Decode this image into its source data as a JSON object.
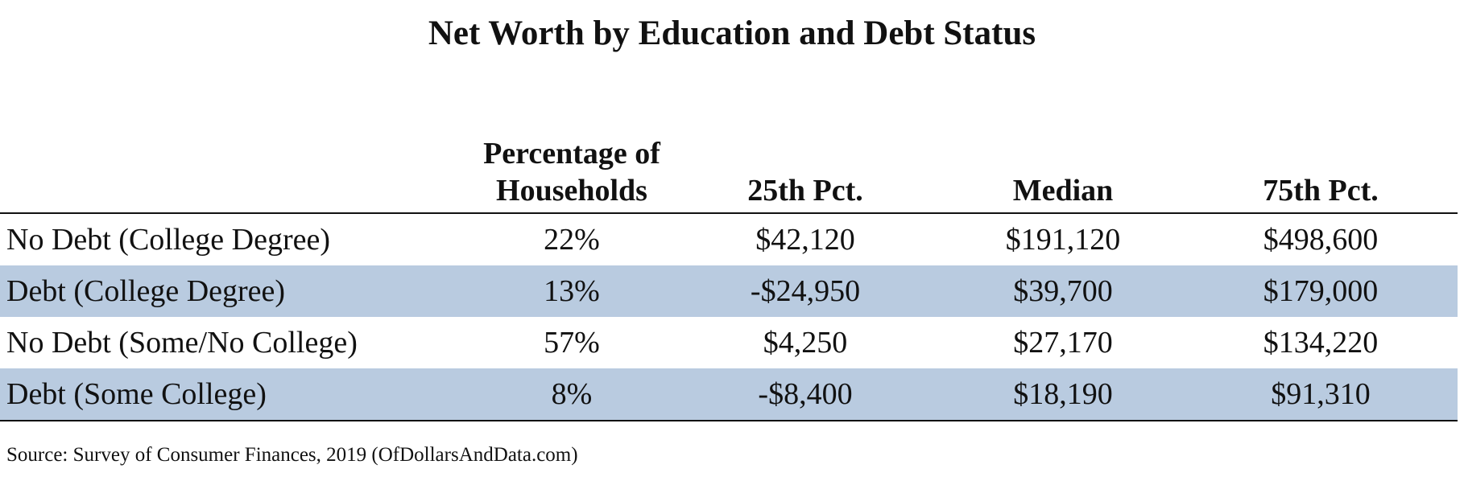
{
  "title": "Net Worth by Education and Debt Status",
  "colors": {
    "shaded_row": "#b9cbe0",
    "text": "#111111",
    "rule": "#111111"
  },
  "table": {
    "headers": {
      "label": "",
      "pct_households": "Percentage of Households",
      "p25": "25th Pct.",
      "median": "Median",
      "p75": "75th Pct."
    },
    "rows": [
      {
        "label": "No Debt (College Degree)",
        "pct_households": "22%",
        "p25": "$42,120",
        "median": "$191,120",
        "p75": "$498,600",
        "shaded": false
      },
      {
        "label": "Debt (College Degree)",
        "pct_households": "13%",
        "p25": "-$24,950",
        "median": "$39,700",
        "p75": "$179,000",
        "shaded": true
      },
      {
        "label": "No Debt (Some/No College)",
        "pct_households": "57%",
        "p25": "$4,250",
        "median": "$27,170",
        "p75": "$134,220",
        "shaded": false
      },
      {
        "label": "Debt (Some College)",
        "pct_households": "8%",
        "p25": "-$8,400",
        "median": "$18,190",
        "p75": "$91,310",
        "shaded": true
      }
    ]
  },
  "source": "Source: Survey of Consumer Finances, 2019 (OfDollarsAndData.com)",
  "chart_data": {
    "type": "table",
    "title": "Net Worth by Education and Debt Status",
    "columns": [
      "",
      "Percentage of Households",
      "25th Pct.",
      "Median",
      "75th Pct."
    ],
    "rows": [
      [
        "No Debt (College Degree)",
        "22%",
        "$42,120",
        "$191,120",
        "$498,600"
      ],
      [
        "Debt (College Degree)",
        "13%",
        "-$24,950",
        "$39,700",
        "$179,000"
      ],
      [
        "No Debt (Some/No College)",
        "57%",
        "$4,250",
        "$27,170",
        "$134,220"
      ],
      [
        "Debt (Some College)",
        "8%",
        "-$8,400",
        "$18,190",
        "$91,310"
      ]
    ],
    "values": {
      "pct_households": [
        22,
        13,
        57,
        8
      ],
      "p25": [
        42120,
        -24950,
        4250,
        -8400
      ],
      "median": [
        191120,
        39700,
        27170,
        18190
      ],
      "p75": [
        498600,
        179000,
        134220,
        91310
      ]
    },
    "source": "Source: Survey of Consumer Finances, 2019 (OfDollarsAndData.com)"
  }
}
